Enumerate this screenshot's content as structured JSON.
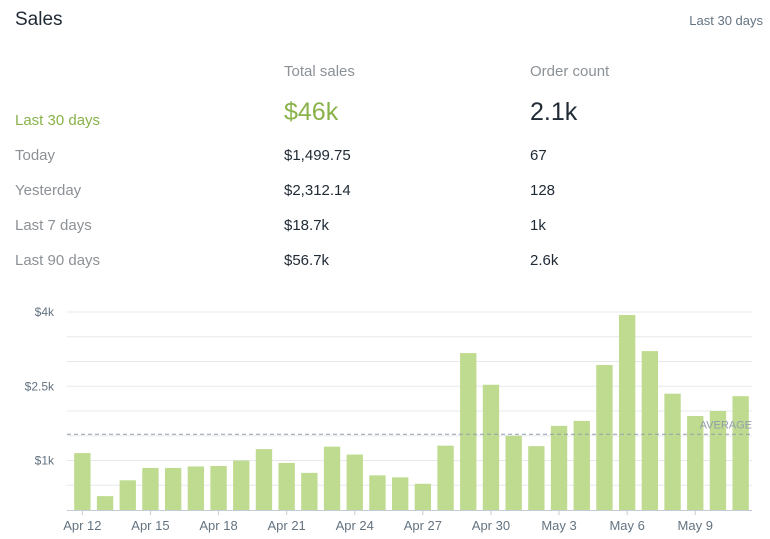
{
  "header": {
    "title": "Sales",
    "range_label": "Last 30 days"
  },
  "summary": {
    "columns": [
      "Total sales",
      "Order count"
    ],
    "highlight": {
      "label": "Last 30 days",
      "total_sales": "$46k",
      "order_count": "2.1k"
    },
    "rows": [
      {
        "label": "Today",
        "total_sales": "$1,499.75",
        "order_count": "67"
      },
      {
        "label": "Yesterday",
        "total_sales": "$2,312.14",
        "order_count": "128"
      },
      {
        "label": "Last 7 days",
        "total_sales": "$18.7k",
        "order_count": "1k"
      },
      {
        "label": "Last 90 days",
        "total_sales": "$56.7k",
        "order_count": "2.6k"
      }
    ]
  },
  "chart_data": {
    "type": "bar",
    "categories": [
      "Apr 12",
      "Apr 13",
      "Apr 14",
      "Apr 15",
      "Apr 16",
      "Apr 17",
      "Apr 18",
      "Apr 19",
      "Apr 20",
      "Apr 21",
      "Apr 22",
      "Apr 23",
      "Apr 24",
      "Apr 25",
      "Apr 26",
      "Apr 27",
      "Apr 28",
      "Apr 29",
      "Apr 30",
      "May 1",
      "May 2",
      "May 3",
      "May 4",
      "May 5",
      "May 6",
      "May 7",
      "May 8",
      "May 9",
      "May 10",
      "May 11"
    ],
    "x_tick_labels": [
      "Apr 12",
      "Apr 15",
      "Apr 18",
      "Apr 21",
      "Apr 24",
      "Apr 27",
      "Apr 30",
      "May 3",
      "May 6",
      "May 9"
    ],
    "values": [
      1150,
      280,
      600,
      850,
      850,
      880,
      890,
      1000,
      1230,
      950,
      750,
      1280,
      1120,
      700,
      660,
      530,
      1300,
      3170,
      2530,
      1500,
      1290,
      1700,
      1800,
      2930,
      3940,
      3210,
      2350,
      1900,
      2000,
      2300
    ],
    "y_tick_labels": [
      "$1k",
      "$2.5k",
      "$4k"
    ],
    "y_ticks": [
      1000,
      2500,
      4000
    ],
    "ylim": [
      0,
      4000
    ],
    "average": 1530,
    "average_label": "AVERAGE",
    "bar_color": "#bfdb8f",
    "grid": true
  }
}
